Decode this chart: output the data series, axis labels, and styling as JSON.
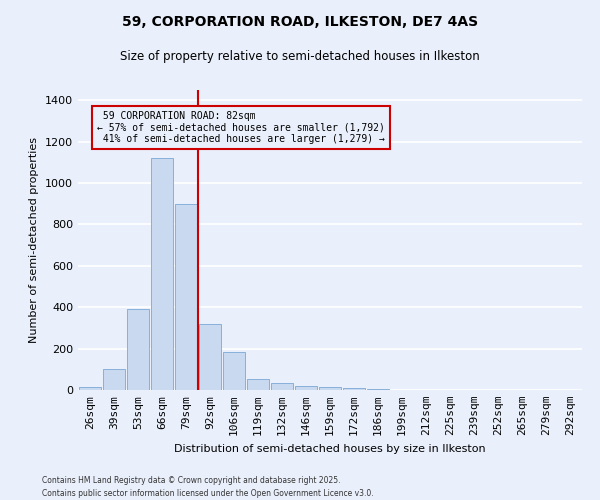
{
  "title": "59, CORPORATION ROAD, ILKESTON, DE7 4AS",
  "subtitle": "Size of property relative to semi-detached houses in Ilkeston",
  "xlabel": "Distribution of semi-detached houses by size in Ilkeston",
  "ylabel": "Number of semi-detached properties",
  "bar_labels": [
    "26sqm",
    "39sqm",
    "53sqm",
    "66sqm",
    "79sqm",
    "92sqm",
    "106sqm",
    "119sqm",
    "132sqm",
    "146sqm",
    "159sqm",
    "172sqm",
    "186sqm",
    "199sqm",
    "212sqm",
    "225sqm",
    "239sqm",
    "252sqm",
    "265sqm",
    "279sqm",
    "292sqm"
  ],
  "bar_values": [
    15,
    100,
    390,
    1120,
    900,
    320,
    185,
    55,
    35,
    20,
    15,
    10,
    5,
    0,
    0,
    0,
    0,
    0,
    0,
    0,
    0
  ],
  "bar_color": "#c9d9f0",
  "bar_edgecolor": "#7aa8d4",
  "property_line_x": 4.5,
  "property_label": "59 CORPORATION ROAD: 82sqm",
  "pct_smaller": "57%",
  "n_smaller": "1,792",
  "pct_larger": "41%",
  "n_larger": "1,279",
  "annotation_box_color": "#cc0000",
  "line_color": "#cc0000",
  "ylim": [
    0,
    1450
  ],
  "background_color": "#eaf0fb",
  "grid_color": "#ffffff",
  "footnote1": "Contains HM Land Registry data © Crown copyright and database right 2025.",
  "footnote2": "Contains public sector information licensed under the Open Government Licence v3.0."
}
